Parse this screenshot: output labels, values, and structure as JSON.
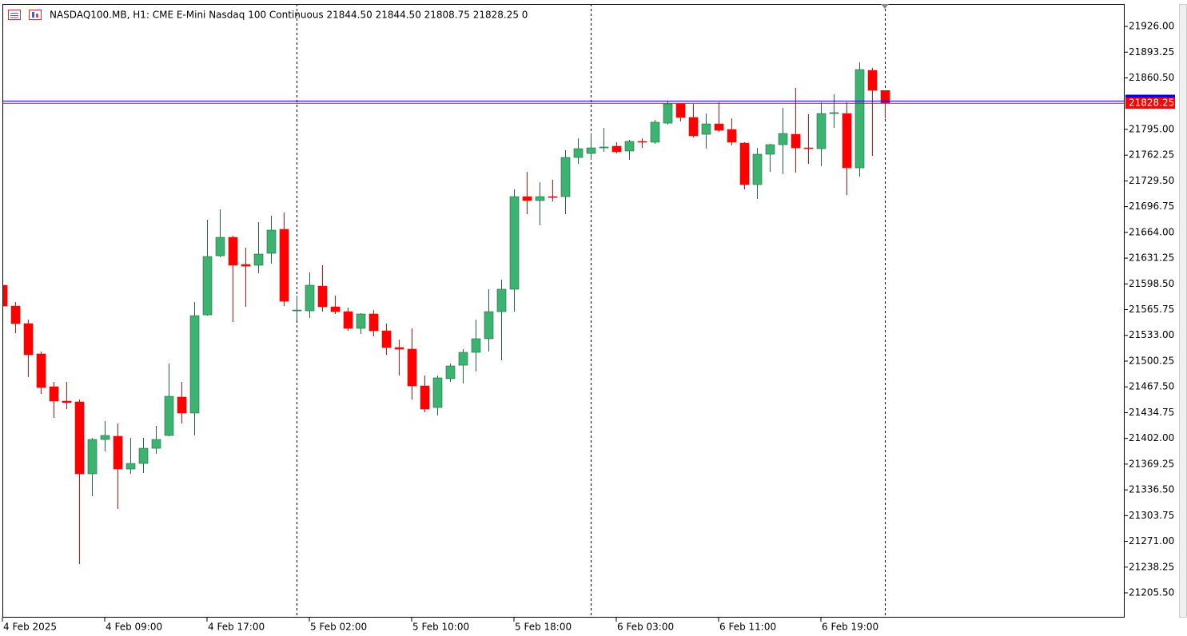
{
  "chart_data": {
    "type": "candlestick",
    "title": "NASDAQ100.MB, H1:  CME E-Mini Nasdaq 100 Continuous  21844.50 21844.50 21808.75 21828.25  0",
    "categories": [
      "4 Feb 2025",
      null,
      null,
      null,
      null,
      null,
      null,
      null,
      "4 Feb 09:00",
      null,
      null,
      null,
      null,
      null,
      null,
      null,
      "4 Feb 17:00",
      null,
      null,
      null,
      null,
      null,
      null,
      null,
      "5 Feb 02:00",
      null,
      null,
      null,
      null,
      null,
      null,
      null,
      "5 Feb 10:00",
      null,
      null,
      null,
      null,
      null,
      null,
      null,
      "5 Feb 18:00",
      null,
      null,
      null,
      null,
      null,
      null,
      null,
      "6 Feb 03:00",
      null,
      null,
      null,
      null,
      null,
      null,
      null,
      "6 Feb 11:00",
      null,
      null,
      null,
      null,
      null,
      null,
      null,
      "6 Feb 19:00",
      null,
      null,
      null,
      null,
      null
    ],
    "open": [
      21596.75,
      21570.3,
      21548,
      21509.4,
      21467.7,
      21449.4,
      21448.4,
      21356.9,
      21400.6,
      21404.7,
      21363,
      21370.1,
      21389.4,
      21405.7,
      21454.5,
      21434.2,
      21559.1,
      21634.3,
      21657.7,
      21623.2,
      21622.2,
      21637.4,
      21667.9,
      21564.2,
      21564.2,
      21595.7,
      21569.3,
      21563.2,
      21541.9,
      21560.2,
      21538.8,
      21517.5,
      21515.5,
      21468.7,
      21441.3,
      21477.9,
      21495.1,
      21511.4,
      21528.7,
      21563.2,
      21591.7,
      21709.5,
      21704.5,
      21709.5,
      21709.5,
      21759.3,
      21764.4,
      21771.5,
      21773.6,
      21767.5,
      21779.7,
      21778.7,
      21803,
      21827.4,
      21810.2,
      21788.8,
      21802,
      21794.9,
      21777.6,
      21724.8,
      21763.4,
      21775.6,
      21788.8,
      21771.5,
      21770.5,
      21815.2,
      21815.2,
      21746.1,
      21870.1,
      21844.5
    ],
    "high": [
      21603.9,
      21575.4,
      21553.1,
      21512.4,
      21473.8,
      21473.8,
      21451.4,
      21402.7,
      21424,
      21421,
      21402.7,
      21402.7,
      21417.9,
      21497.2,
      21473.8,
      21575.4,
      21680.1,
      21693.3,
      21659.8,
      21644.5,
      21677,
      21685.2,
      21689.2,
      21583.5,
      21613,
      21622.2,
      21583.5,
      21568.3,
      21561.2,
      21565.2,
      21548,
      21527.6,
      21541.9,
      21481.9,
      21481.9,
      21497.2,
      21515.5,
      21553.1,
      21591.7,
      21603.9,
      21718.7,
      21741,
      21727.8,
      21730.9,
      21768.5,
      21783.7,
      21788.8,
      21796.9,
      21778.7,
      21781.7,
      21783.7,
      21807.1,
      21830.5,
      21828.4,
      21827.4,
      21815.2,
      21829.5,
      21809.1,
      21778.7,
      21771.5,
      21776.6,
      21822.3,
      21847.8,
      21814.2,
      21829.5,
      21839.6,
      21829.5,
      21880.3,
      21873.2,
      21844.5
    ],
    "low": [
      21563.2,
      21535.8,
      21479.9,
      21458.5,
      21428.1,
      21439.2,
      21242.1,
      21328.5,
      21385.4,
      21312.2,
      21356.9,
      21357.9,
      21382.3,
      21404.7,
      21421,
      21405.7,
      21558.1,
      21632.3,
      21550,
      21569.3,
      21612,
      21624.2,
      21570.3,
      21552,
      21555.1,
      21563.2,
      21560.2,
      21538.8,
      21534.8,
      21531.7,
      21508.3,
      21481.9,
      21451.4,
      21435.2,
      21431.1,
      21473.8,
      21471.8,
      21487,
      21512.4,
      21501.2,
      21563.2,
      21687.2,
      21673,
      21703.5,
      21687.2,
      21751.2,
      21756.3,
      21766.5,
      21764.4,
      21756.3,
      21771.5,
      21776.6,
      21801,
      21805.1,
      21784.7,
      21770.5,
      21791.9,
      21774.6,
      21718.7,
      21706.5,
      21741,
      21738,
      21740,
      21751.2,
      21748.2,
      21796.9,
      21711.6,
      21735,
      21761.4,
      21808.75
    ],
    "close": [
      21570.3,
      21548,
      21508.3,
      21466.7,
      21449.4,
      21447.4,
      21356.9,
      21400.6,
      21405.7,
      21363,
      21370.1,
      21389.4,
      21400.6,
      21455.5,
      21434.2,
      21558.1,
      21633.3,
      21657.7,
      21622.2,
      21621.1,
      21636.4,
      21666.9,
      21576.4,
      21565.2,
      21596.75,
      21569.3,
      21563.2,
      21541.9,
      21560.2,
      21538.8,
      21517.5,
      21515.5,
      21468.7,
      21439.2,
      21478.9,
      21494.1,
      21511.4,
      21528.7,
      21563.2,
      21591.7,
      21709.5,
      21704.5,
      21709.5,
      21708.5,
      21759.3,
      21770.5,
      21771.5,
      21772.6,
      21766.5,
      21779.7,
      21778.7,
      21804.1,
      21827.4,
      21810.2,
      21786.8,
      21802,
      21793.9,
      21778.7,
      21724.8,
      21763.4,
      21775.6,
      21789.8,
      21771.5,
      21770.5,
      21815.2,
      21816.3,
      21746.1,
      21871.1,
      21844.7,
      21828.25
    ],
    "up_color": "#3cb371",
    "down_color": "#ff0000",
    "price_lines": [
      {
        "value": 21831,
        "color": "#0000ff"
      },
      {
        "value": 21828.25,
        "color": "#ff0000"
      }
    ],
    "ylim": [
      21174,
      21954.5
    ],
    "yticks": [
      {
        "value": 21926,
        "label": "21926.00"
      },
      {
        "value": 21893.25,
        "label": "21893.25"
      },
      {
        "value": 21860.5,
        "label": "21860.50"
      },
      {
        "value": 21795,
        "label": "21795.00"
      },
      {
        "value": 21762.25,
        "label": "21762.25"
      },
      {
        "value": 21729.5,
        "label": "21729.50"
      },
      {
        "value": 21696.75,
        "label": "21696.75"
      },
      {
        "value": 21664,
        "label": "21664.00"
      },
      {
        "value": 21631.25,
        "label": "21631.25"
      },
      {
        "value": 21598.5,
        "label": "21598.50"
      },
      {
        "value": 21565.75,
        "label": "21565.75"
      },
      {
        "value": 21533,
        "label": "21533.00"
      },
      {
        "value": 21500.25,
        "label": "21500.25"
      },
      {
        "value": 21467.5,
        "label": "21467.50"
      },
      {
        "value": 21434.75,
        "label": "21434.75"
      },
      {
        "value": 21402,
        "label": "21402.00"
      },
      {
        "value": 21369.25,
        "label": "21369.25"
      },
      {
        "value": 21336.5,
        "label": "21336.50"
      },
      {
        "value": 21303.75,
        "label": "21303.75"
      },
      {
        "value": 21271,
        "label": "21271.00"
      },
      {
        "value": 21238.25,
        "label": "21238.25"
      },
      {
        "value": 21205.5,
        "label": "21205.50"
      }
    ],
    "grid": false
  }
}
